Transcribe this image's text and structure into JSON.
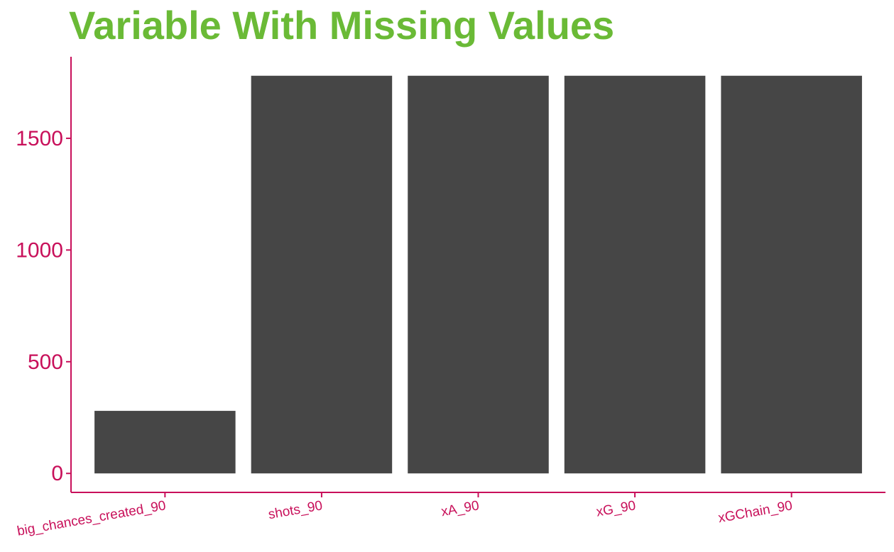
{
  "colors": {
    "title": "#6aba36",
    "axis": "#c8105a",
    "bar": "#464646",
    "background": "#ffffff"
  },
  "chart_data": {
    "type": "bar",
    "title": "Variable With Missing Values",
    "xlabel": "",
    "ylabel": "",
    "categories": [
      "big_chances_created_90",
      "shots_90",
      "xA_90",
      "xG_90",
      "xGChain_90"
    ],
    "values": [
      280,
      1780,
      1780,
      1780,
      1780
    ],
    "ylim": [
      -85,
      1865
    ],
    "yticks": [
      0,
      500,
      1000,
      1500
    ],
    "ytick_labels": [
      "0",
      "500",
      "1000",
      "1500"
    ],
    "grid": false,
    "legend": "none"
  }
}
